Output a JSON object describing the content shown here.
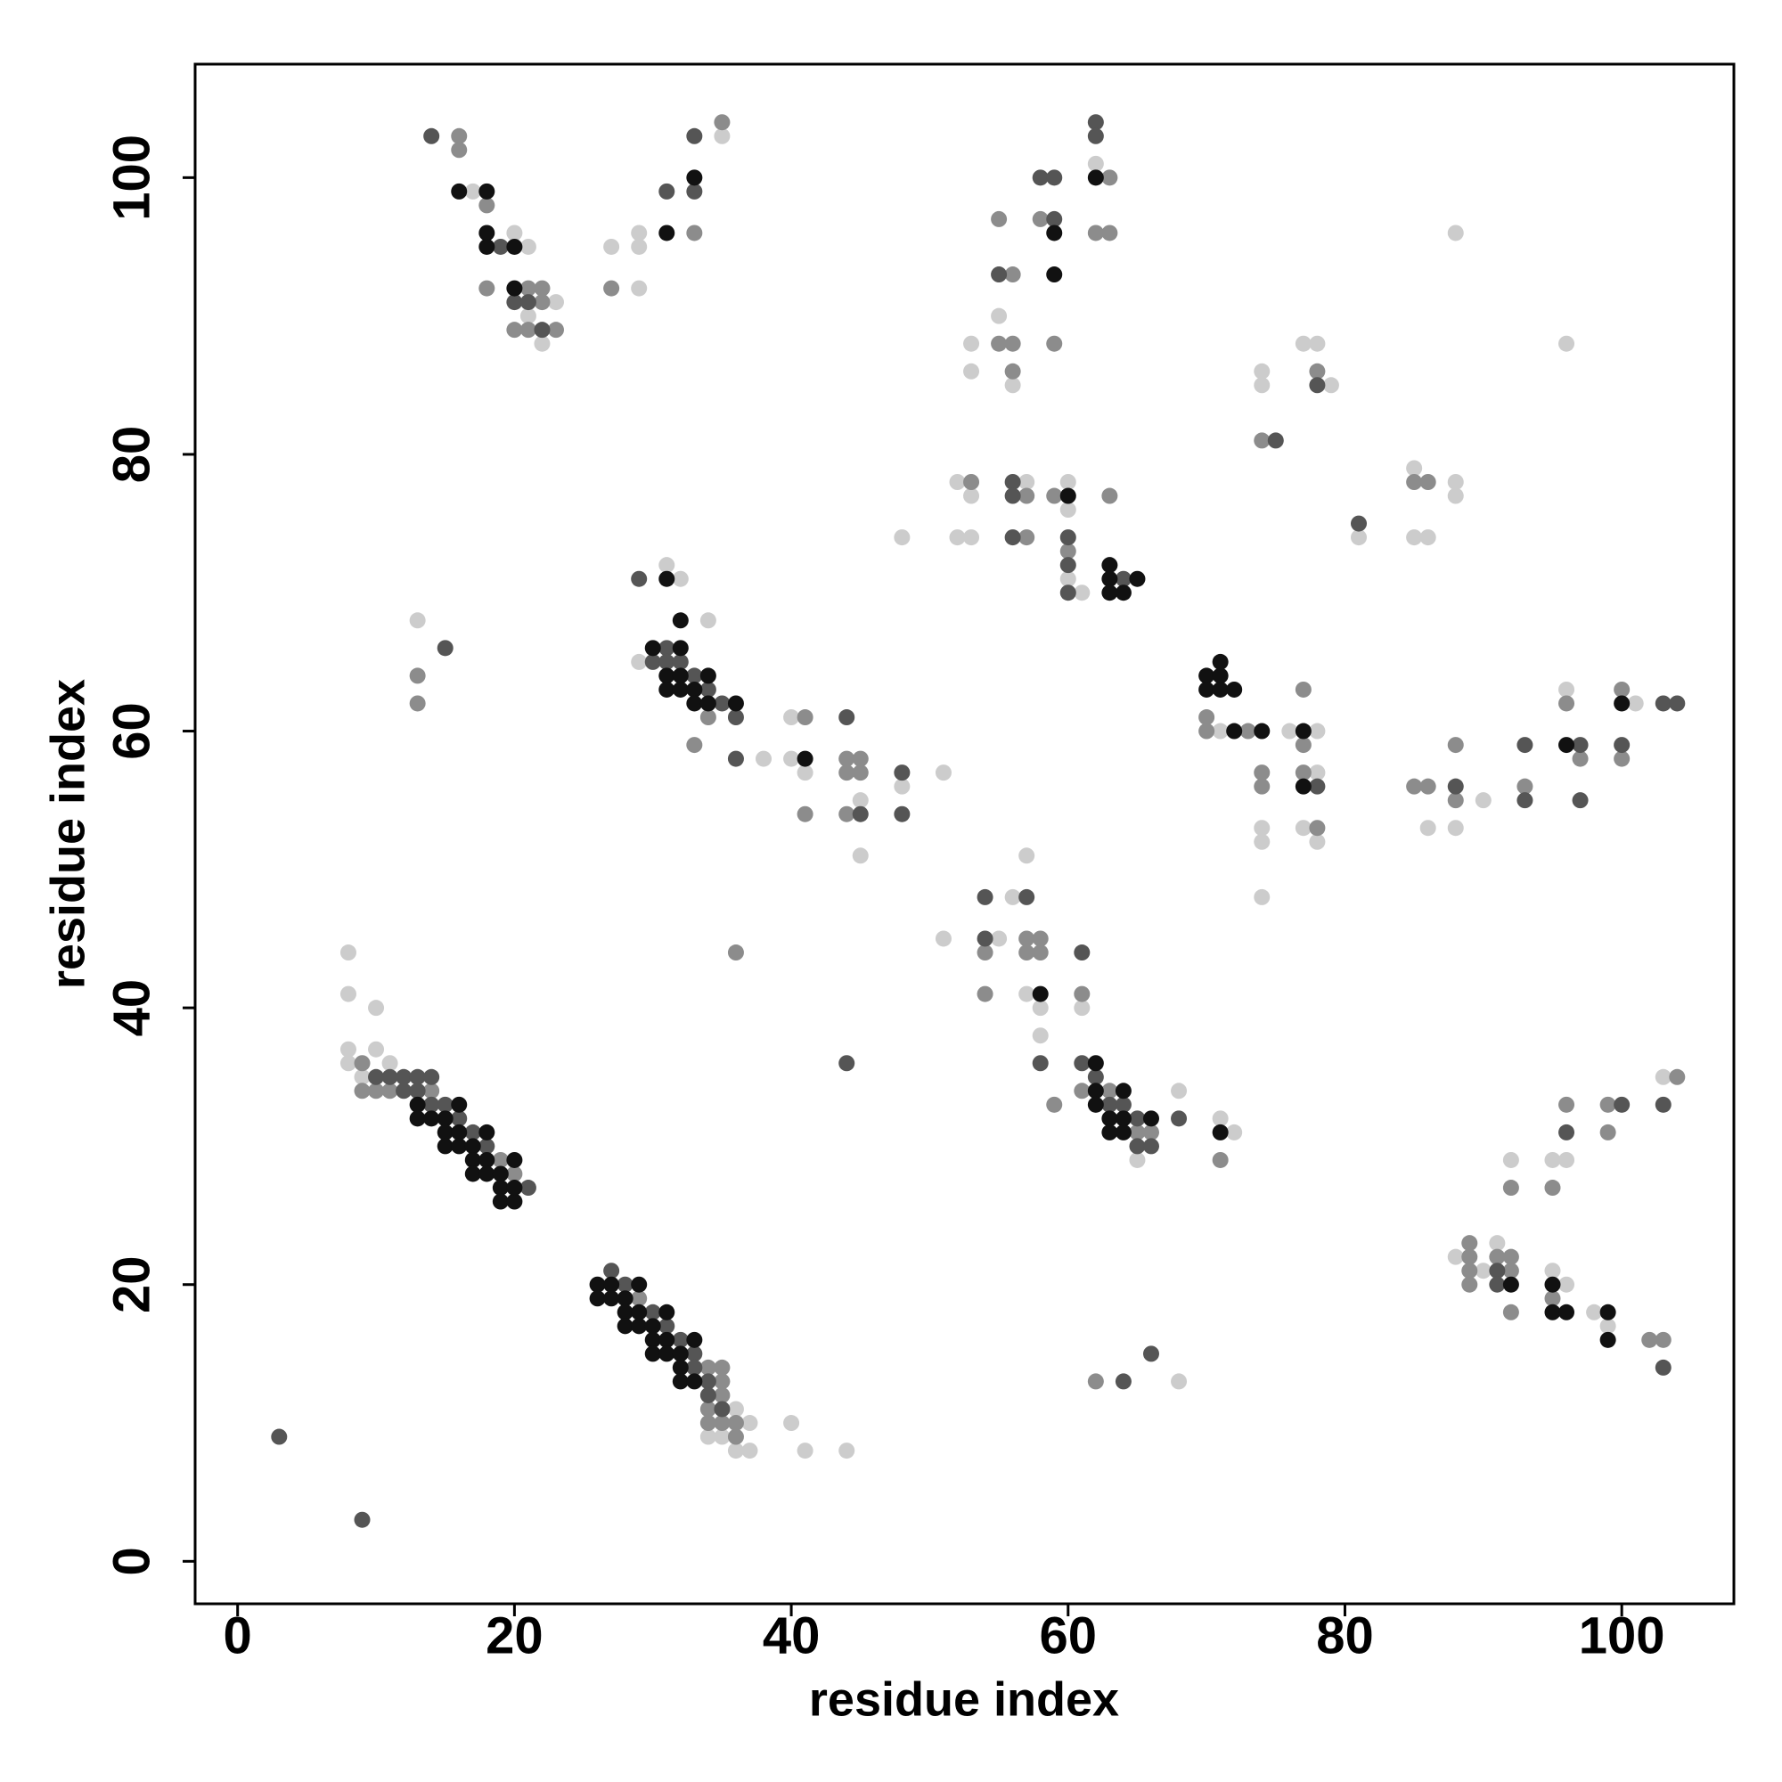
{
  "chart_data": {
    "type": "scatter",
    "xlabel": "residue index",
    "ylabel": "residue index",
    "xlim": [
      -3.07,
      108.1
    ],
    "ylim": [
      -3.07,
      108.2
    ],
    "xticks": [
      0,
      20,
      40,
      60,
      80,
      100
    ],
    "yticks": [
      0,
      20,
      40,
      60,
      80,
      100
    ],
    "grid": false,
    "series": [
      {
        "color": "#cccccc",
        "x": [
          8,
          8,
          10,
          8,
          10,
          8,
          11,
          9,
          36,
          37,
          34,
          35,
          36,
          37,
          40,
          41,
          44,
          13,
          17,
          20,
          21,
          23,
          21,
          22,
          27,
          29,
          29,
          29,
          35,
          31,
          32,
          29,
          34,
          38,
          40,
          40,
          41,
          45,
          45,
          48,
          51,
          48,
          52,
          53,
          52,
          53,
          53,
          53,
          55,
          56,
          57,
          60,
          60,
          60,
          61,
          62,
          71,
          74,
          74,
          74,
          76,
          78,
          78,
          77,
          78,
          86,
          88,
          90,
          96,
          101,
          74,
          74,
          77,
          78,
          79,
          81,
          85,
          85,
          86,
          88,
          88,
          88,
          96,
          51,
          55,
          56,
          57,
          57,
          58,
          58,
          61,
          65,
          68,
          71,
          72,
          68,
          88,
          90,
          91,
          92,
          95,
          96,
          103,
          95,
          96,
          98,
          99
        ],
        "y": [
          44,
          41,
          40,
          37,
          37,
          36,
          36,
          35,
          11,
          10,
          9,
          9,
          8,
          8,
          10,
          8,
          8,
          68,
          99,
          96,
          95,
          91,
          90,
          88,
          95,
          96,
          95,
          92,
          103,
          72,
          71,
          65,
          68,
          58,
          61,
          58,
          57,
          55,
          51,
          56,
          57,
          74,
          78,
          77,
          74,
          74,
          88,
          86,
          90,
          85,
          78,
          78,
          76,
          71,
          70,
          101,
          60,
          53,
          52,
          48,
          60,
          60,
          57,
          53,
          52,
          53,
          53,
          55,
          63,
          62,
          86,
          85,
          88,
          88,
          85,
          74,
          79,
          74,
          74,
          78,
          77,
          96,
          88,
          45,
          45,
          48,
          51,
          41,
          40,
          38,
          40,
          29,
          34,
          32,
          31,
          13,
          22,
          21,
          23,
          29,
          29,
          29,
          35,
          21,
          20,
          18,
          17
        ]
      },
      {
        "color": "#8c8c8c",
        "x": [
          9,
          9,
          10,
          11,
          14,
          19,
          20,
          29,
          34,
          35,
          35,
          35,
          34,
          34,
          35,
          36,
          36,
          13,
          13,
          36,
          16,
          16,
          18,
          18,
          21,
          22,
          22,
          20,
          21,
          23,
          27,
          33,
          35,
          34,
          33,
          41,
          44,
          45,
          44,
          45,
          41,
          44,
          53,
          55,
          56,
          55,
          56,
          56,
          57,
          57,
          58,
          59,
          59,
          60,
          63,
          62,
          63,
          63,
          70,
          70,
          73,
          74,
          74,
          77,
          77,
          77,
          78,
          85,
          86,
          88,
          88,
          93,
          96,
          97,
          100,
          100,
          74,
          78,
          85,
          86,
          54,
          54,
          57,
          58,
          57,
          58,
          61,
          61,
          63,
          59,
          65,
          66,
          71,
          62,
          89,
          89,
          89,
          89,
          91,
          92,
          92,
          92,
          92,
          95,
          96,
          99,
          99,
          104,
          95,
          102,
          103
        ],
        "y": [
          36,
          34,
          34,
          34,
          34,
          29,
          28,
          19,
          14,
          14,
          13,
          12,
          11,
          10,
          10,
          10,
          9,
          64,
          62,
          44,
          103,
          102,
          98,
          92,
          92,
          92,
          91,
          89,
          89,
          89,
          92,
          96,
          104,
          61,
          59,
          61,
          58,
          58,
          57,
          57,
          54,
          54,
          78,
          97,
          93,
          88,
          88,
          86,
          77,
          74,
          97,
          88,
          77,
          73,
          100,
          96,
          96,
          77,
          61,
          60,
          60,
          57,
          56,
          63,
          59,
          57,
          53,
          56,
          56,
          59,
          55,
          56,
          62,
          58,
          63,
          58,
          81,
          86,
          78,
          78,
          44,
          41,
          45,
          45,
          44,
          44,
          41,
          34,
          34,
          33,
          31,
          31,
          29,
          13,
          23,
          22,
          21,
          20,
          22,
          22,
          21,
          18,
          27,
          27,
          33,
          33,
          31,
          35,
          19,
          16,
          16
        ]
      },
      {
        "color": "#555555",
        "x": [
          3,
          9,
          10,
          11,
          12,
          12,
          13,
          14,
          13,
          14,
          15,
          16,
          17,
          18,
          21,
          28,
          27,
          30,
          31,
          32,
          33,
          33,
          34,
          34,
          35,
          15,
          44,
          14,
          19,
          20,
          21,
          22,
          31,
          33,
          33,
          29,
          31,
          30,
          31,
          32,
          33,
          34,
          35,
          36,
          36,
          44,
          45,
          48,
          48,
          55,
          56,
          56,
          56,
          58,
          59,
          59,
          60,
          60,
          60,
          62,
          62,
          64,
          75,
          78,
          81,
          78,
          88,
          93,
          93,
          97,
          97,
          100,
          103,
          104,
          54,
          54,
          57,
          58,
          61,
          61,
          62,
          63,
          64,
          65,
          65,
          66,
          68,
          64,
          66,
          91,
          91,
          96,
          100,
          103,
          103
        ],
        "y": [
          9,
          3,
          35,
          35,
          35,
          34,
          35,
          35,
          34,
          33,
          33,
          32,
          31,
          30,
          27,
          20,
          21,
          18,
          17,
          16,
          15,
          14,
          13,
          12,
          11,
          66,
          36,
          103,
          95,
          91,
          91,
          89,
          99,
          103,
          99,
          71,
          66,
          65,
          65,
          65,
          64,
          63,
          62,
          61,
          58,
          61,
          54,
          57,
          54,
          93,
          78,
          77,
          74,
          100,
          100,
          97,
          74,
          72,
          70,
          104,
          103,
          71,
          81,
          85,
          75,
          56,
          56,
          59,
          55,
          59,
          55,
          59,
          62,
          62,
          48,
          45,
          48,
          36,
          44,
          36,
          35,
          33,
          33,
          32,
          30,
          30,
          32,
          13,
          15,
          21,
          20,
          31,
          33,
          33,
          14
        ]
      },
      {
        "color": "#111111",
        "x": [
          13,
          13,
          14,
          16,
          15,
          15,
          16,
          15,
          16,
          18,
          17,
          17,
          18,
          20,
          17,
          18,
          19,
          19,
          19,
          20,
          20,
          26,
          27,
          29,
          26,
          27,
          28,
          28,
          29,
          31,
          28,
          29,
          30,
          30,
          31,
          33,
          30,
          31,
          32,
          32,
          32,
          33,
          16,
          18,
          18,
          18,
          20,
          20,
          31,
          33,
          31,
          30,
          32,
          31,
          32,
          34,
          31,
          32,
          33,
          33,
          34,
          36,
          32,
          41,
          59,
          59,
          60,
          62,
          63,
          63,
          65,
          63,
          64,
          70,
          71,
          71,
          70,
          71,
          72,
          72,
          74,
          77,
          77,
          96,
          100,
          58,
          62,
          62,
          64,
          62,
          63,
          64,
          66,
          63,
          64,
          71,
          92,
          95,
          95,
          96,
          99,
          99
        ],
        "y": [
          33,
          32,
          32,
          33,
          32,
          31,
          31,
          30,
          30,
          31,
          30,
          29,
          29,
          29,
          28,
          28,
          28,
          27,
          26,
          26,
          27,
          20,
          20,
          20,
          19,
          19,
          19,
          18,
          18,
          18,
          17,
          17,
          17,
          16,
          16,
          16,
          15,
          15,
          15,
          14,
          13,
          13,
          99,
          99,
          96,
          95,
          95,
          92,
          96,
          100,
          71,
          66,
          66,
          64,
          64,
          64,
          63,
          63,
          63,
          62,
          62,
          62,
          68,
          58,
          96,
          93,
          77,
          100,
          72,
          71,
          71,
          70,
          70,
          64,
          64,
          65,
          63,
          63,
          63,
          60,
          60,
          60,
          56,
          59,
          62,
          41,
          36,
          34,
          34,
          33,
          32,
          32,
          32,
          31,
          31,
          31,
          20,
          20,
          18,
          18,
          18,
          16
        ]
      }
    ]
  }
}
